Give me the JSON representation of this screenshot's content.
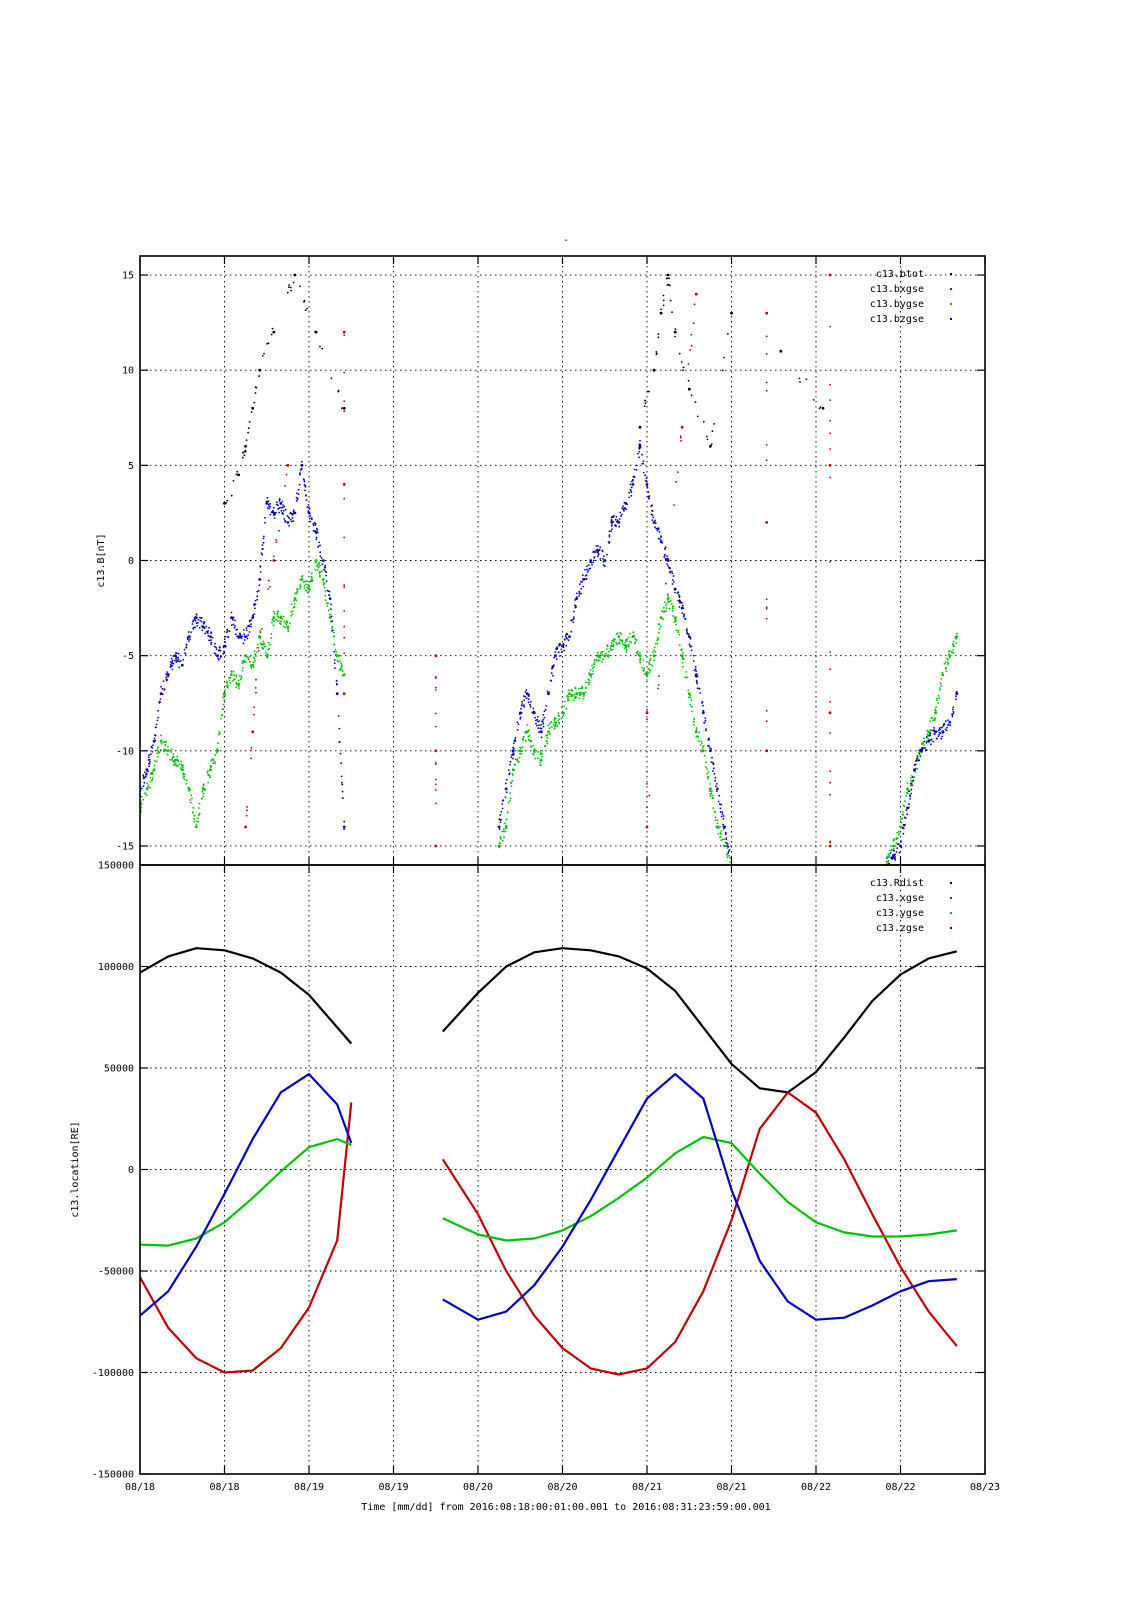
{
  "chart_data": [
    {
      "type": "scatter",
      "title": "-",
      "ylabel": "c13.B[nT]",
      "ylim": [
        -16,
        16
      ],
      "yticks": [
        -15,
        -10,
        -5,
        0,
        5,
        10,
        15
      ],
      "xlim": [
        "2016-08-18 00:00",
        "2016-08-23 00:00"
      ],
      "grid": true,
      "legend_position": "top-right",
      "series": [
        {
          "name": "c13.btot",
          "color": "#000000",
          "x": [
            "2016-08-18 12:00",
            "2016-08-18 14:00",
            "2016-08-18 15:00",
            "2016-08-18 16:00",
            "2016-08-18 17:00",
            "2016-08-18 19:00",
            "2016-08-18 22:00",
            "2016-08-19 01:00",
            "2016-08-19 05:00",
            "2016-08-20 23:00",
            "2016-08-21 01:00",
            "2016-08-21 02:00",
            "2016-08-21 03:00",
            "2016-08-21 04:00",
            "2016-08-21 06:00",
            "2016-08-21 09:00",
            "2016-08-21 12:00",
            "2016-08-21 19:00",
            "2016-08-22 01:00"
          ],
          "y": [
            3,
            4.5,
            6,
            8,
            10,
            12,
            15,
            12,
            8,
            7,
            10,
            13,
            15,
            12,
            9,
            6,
            13,
            11,
            8
          ]
        },
        {
          "name": "c13.bxgse",
          "color": "#c00000",
          "x": [
            "2016-08-18 15:00",
            "2016-08-18 16:00",
            "2016-08-18 17:00",
            "2016-08-18 19:00",
            "2016-08-18 21:00",
            "2016-08-19 05:00",
            "2016-08-19 05:00",
            "2016-08-19 05:00",
            "2016-08-19 18:00",
            "2016-08-19 18:00",
            "2016-08-19 18:00",
            "2016-08-21 00:00",
            "2016-08-21 00:00",
            "2016-08-21 03:00",
            "2016-08-21 05:00",
            "2016-08-21 07:00",
            "2016-08-21 17:00",
            "2016-08-21 17:00",
            "2016-08-21 17:00",
            "2016-08-22 02:00",
            "2016-08-22 02:00",
            "2016-08-22 02:00",
            "2016-08-22 02:00"
          ],
          "y": [
            -14,
            -9,
            -4,
            0,
            5,
            12,
            -7,
            4,
            -5,
            -10,
            -15,
            -8,
            -14,
            0,
            7,
            14,
            -10,
            2,
            13,
            15,
            5,
            -8,
            -15
          ]
        },
        {
          "name": "c13.bygse",
          "color": "#00c000",
          "x": [
            "2016-08-18 00:00",
            "2016-08-18 01:00",
            "2016-08-18 02:00",
            "2016-08-18 03:00",
            "2016-08-18 04:00",
            "2016-08-18 05:00",
            "2016-08-18 06:00",
            "2016-08-18 07:00",
            "2016-08-18 08:00",
            "2016-08-18 09:00",
            "2016-08-18 10:00",
            "2016-08-18 11:00",
            "2016-08-18 12:00",
            "2016-08-18 13:00",
            "2016-08-18 14:00",
            "2016-08-18 15:00",
            "2016-08-18 16:00",
            "2016-08-18 17:00",
            "2016-08-18 18:00",
            "2016-08-18 19:00",
            "2016-08-18 20:00",
            "2016-08-18 21:00",
            "2016-08-18 22:00",
            "2016-08-18 23:00",
            "2016-08-19 00:00",
            "2016-08-19 01:00",
            "2016-08-19 02:00",
            "2016-08-19 03:00",
            "2016-08-19 04:00",
            "2016-08-19 05:00",
            "2016-08-20 03:00",
            "2016-08-20 04:00",
            "2016-08-20 05:00",
            "2016-08-20 06:00",
            "2016-08-20 07:00",
            "2016-08-20 08:00",
            "2016-08-20 09:00",
            "2016-08-20 10:00",
            "2016-08-20 11:00",
            "2016-08-20 12:00",
            "2016-08-20 13:00",
            "2016-08-20 14:00",
            "2016-08-20 15:00",
            "2016-08-20 16:00",
            "2016-08-20 17:00",
            "2016-08-20 18:00",
            "2016-08-20 19:00",
            "2016-08-20 20:00",
            "2016-08-20 21:00",
            "2016-08-20 22:00",
            "2016-08-20 23:00",
            "2016-08-21 00:00",
            "2016-08-21 01:00",
            "2016-08-21 02:00",
            "2016-08-21 03:00",
            "2016-08-21 04:00",
            "2016-08-21 05:00",
            "2016-08-21 06:00",
            "2016-08-21 07:00",
            "2016-08-21 08:00",
            "2016-08-21 09:00",
            "2016-08-21 10:00",
            "2016-08-21 11:00",
            "2016-08-21 12:00",
            "2016-08-22 10:00",
            "2016-08-22 11:00",
            "2016-08-22 12:00",
            "2016-08-22 13:00",
            "2016-08-22 14:00",
            "2016-08-22 15:00",
            "2016-08-22 16:00",
            "2016-08-22 17:00",
            "2016-08-22 18:00",
            "2016-08-22 19:00",
            "2016-08-22 20:00"
          ],
          "y": [
            -13,
            -12,
            -11,
            -9.5,
            -10,
            -10.5,
            -11,
            -12,
            -14,
            -12,
            -11,
            -10,
            -7,
            -6,
            -6.5,
            -5,
            -5.5,
            -4,
            -5,
            -3,
            -3,
            -3.5,
            -2,
            -1,
            -1.5,
            0,
            -1,
            -3,
            -5,
            -6,
            -15,
            -14,
            -11,
            -10,
            -9,
            -10,
            -10.5,
            -9,
            -8.5,
            -8,
            -7,
            -7,
            -7,
            -6,
            -5,
            -5,
            -4.5,
            -4,
            -4.5,
            -4,
            -5,
            -6,
            -5,
            -3,
            -2,
            -3,
            -5,
            -7,
            -9,
            -10,
            -12,
            -14,
            -15,
            -16,
            -16,
            -15,
            -14,
            -12,
            -11,
            -10,
            -9,
            -8,
            -6,
            -5,
            -4
          ]
        },
        {
          "name": "c13.bzgse",
          "color": "#0000c0",
          "x": [
            "2016-08-18 00:00",
            "2016-08-18 01:00",
            "2016-08-18 02:00",
            "2016-08-18 03:00",
            "2016-08-18 04:00",
            "2016-08-18 05:00",
            "2016-08-18 06:00",
            "2016-08-18 07:00",
            "2016-08-18 08:00",
            "2016-08-18 09:00",
            "2016-08-18 10:00",
            "2016-08-18 11:00",
            "2016-08-18 12:00",
            "2016-08-18 13:00",
            "2016-08-18 14:00",
            "2016-08-18 15:00",
            "2016-08-18 16:00",
            "2016-08-18 17:00",
            "2016-08-18 18:00",
            "2016-08-18 19:00",
            "2016-08-18 20:00",
            "2016-08-18 21:00",
            "2016-08-18 22:00",
            "2016-08-18 23:00",
            "2016-08-19 00:00",
            "2016-08-19 01:00",
            "2016-08-19 02:00",
            "2016-08-19 03:00",
            "2016-08-19 04:00",
            "2016-08-19 05:00",
            "2016-08-20 03:00",
            "2016-08-20 04:00",
            "2016-08-20 05:00",
            "2016-08-20 06:00",
            "2016-08-20 07:00",
            "2016-08-20 08:00",
            "2016-08-20 09:00",
            "2016-08-20 10:00",
            "2016-08-20 11:00",
            "2016-08-20 12:00",
            "2016-08-20 13:00",
            "2016-08-20 14:00",
            "2016-08-20 15:00",
            "2016-08-20 16:00",
            "2016-08-20 17:00",
            "2016-08-20 18:00",
            "2016-08-20 19:00",
            "2016-08-20 20:00",
            "2016-08-20 21:00",
            "2016-08-20 22:00",
            "2016-08-20 23:00",
            "2016-08-21 00:00",
            "2016-08-21 01:00",
            "2016-08-21 02:00",
            "2016-08-21 03:00",
            "2016-08-21 04:00",
            "2016-08-21 05:00",
            "2016-08-21 06:00",
            "2016-08-21 07:00",
            "2016-08-21 08:00",
            "2016-08-21 09:00",
            "2016-08-21 10:00",
            "2016-08-21 11:00",
            "2016-08-21 12:00",
            "2016-08-22 10:00",
            "2016-08-22 11:00",
            "2016-08-22 12:00",
            "2016-08-22 13:00",
            "2016-08-22 14:00",
            "2016-08-22 15:00",
            "2016-08-22 16:00",
            "2016-08-22 17:00",
            "2016-08-22 18:00",
            "2016-08-22 19:00",
            "2016-08-22 20:00"
          ],
          "y": [
            -12,
            -11,
            -9.5,
            -7,
            -6,
            -5,
            -5.5,
            -4,
            -3,
            -3.5,
            -4,
            -5,
            -4.5,
            -3,
            -4,
            -4,
            -3,
            -1,
            3,
            2.5,
            3,
            2,
            2.5,
            5,
            2.5,
            1.5,
            0,
            -2,
            -7,
            -14,
            -14,
            -12,
            -10,
            -8,
            -7,
            -8,
            -9,
            -7,
            -5,
            -4.5,
            -4,
            -2,
            -1,
            0,
            0.5,
            0,
            2,
            2,
            3,
            4,
            6,
            4,
            2,
            1,
            0,
            -1.5,
            -2.5,
            -4,
            -6,
            -8,
            -10,
            -12,
            -14,
            -16,
            -16,
            -15.5,
            -15,
            -13,
            -11,
            -10,
            -9.5,
            -9,
            -9,
            -8.5,
            -7
          ]
        }
      ]
    },
    {
      "type": "line",
      "ylabel": "c13.location[RE]",
      "xlabel": "Time [mm/dd]  from 2016:08:18:00:01:00.001  to  2016:08:31:23:59:00.001",
      "ylim": [
        -150000,
        150000
      ],
      "yticks": [
        -150000,
        -100000,
        -50000,
        0,
        50000,
        100000,
        150000
      ],
      "xlim": [
        "2016-08-18 00:00",
        "2016-08-23 00:00"
      ],
      "xtick_labels": [
        "08/18",
        "08/18",
        "08/19",
        "08/19",
        "08/20",
        "08/20",
        "08/21",
        "08/21",
        "08/22",
        "08/22",
        "08/23"
      ],
      "grid": true,
      "legend_position": "top-right",
      "series": [
        {
          "name": "c13.Rdist",
          "color": "#000000",
          "x": [
            "2016-08-18 00:00",
            "2016-08-18 04:00",
            "2016-08-18 08:00",
            "2016-08-18 12:00",
            "2016-08-18 16:00",
            "2016-08-18 20:00",
            "2016-08-19 00:00",
            "2016-08-19 04:00",
            "2016-08-19 06:00",
            "2016-08-19 19:00",
            "2016-08-20 00:00",
            "2016-08-20 04:00",
            "2016-08-20 08:00",
            "2016-08-20 12:00",
            "2016-08-20 16:00",
            "2016-08-20 20:00",
            "2016-08-21 00:00",
            "2016-08-21 04:00",
            "2016-08-21 08:00",
            "2016-08-21 12:00",
            "2016-08-21 16:00",
            "2016-08-21 20:00",
            "2016-08-22 00:00",
            "2016-08-22 04:00",
            "2016-08-22 08:00",
            "2016-08-22 12:00",
            "2016-08-22 16:00",
            "2016-08-22 20:00"
          ],
          "y": [
            97000,
            105000,
            109000,
            108000,
            104000,
            97000,
            86000,
            70000,
            62000,
            68000,
            87000,
            100000,
            107000,
            109000,
            108000,
            105000,
            99000,
            88000,
            70000,
            52000,
            40000,
            38000,
            48000,
            65000,
            83000,
            96000,
            104000,
            107500
          ]
        },
        {
          "name": "c13.xgse",
          "color": "#c00000",
          "x": [
            "2016-08-18 00:00",
            "2016-08-18 04:00",
            "2016-08-18 08:00",
            "2016-08-18 12:00",
            "2016-08-18 16:00",
            "2016-08-18 20:00",
            "2016-08-19 00:00",
            "2016-08-19 04:00",
            "2016-08-19 06:00",
            "2016-08-19 19:00",
            "2016-08-20 00:00",
            "2016-08-20 04:00",
            "2016-08-20 08:00",
            "2016-08-20 12:00",
            "2016-08-20 16:00",
            "2016-08-20 20:00",
            "2016-08-21 00:00",
            "2016-08-21 04:00",
            "2016-08-21 08:00",
            "2016-08-21 12:00",
            "2016-08-21 16:00",
            "2016-08-21 20:00",
            "2016-08-22 00:00",
            "2016-08-22 04:00",
            "2016-08-22 08:00",
            "2016-08-22 12:00",
            "2016-08-22 16:00",
            "2016-08-22 20:00"
          ],
          "y": [
            -53000,
            -78000,
            -93000,
            -100000,
            -99000,
            -88000,
            -68000,
            -35000,
            33000,
            5000,
            -22000,
            -50000,
            -72000,
            -88000,
            -98000,
            -101000,
            -98000,
            -85000,
            -60000,
            -25000,
            20000,
            38000,
            28000,
            5000,
            -22000,
            -48000,
            -70000,
            -87000
          ]
        },
        {
          "name": "c13.ygse",
          "color": "#00c000",
          "x": [
            "2016-08-18 00:00",
            "2016-08-18 04:00",
            "2016-08-18 08:00",
            "2016-08-18 12:00",
            "2016-08-18 16:00",
            "2016-08-18 20:00",
            "2016-08-19 00:00",
            "2016-08-19 04:00",
            "2016-08-19 06:00",
            "2016-08-19 19:00",
            "2016-08-20 00:00",
            "2016-08-20 04:00",
            "2016-08-20 08:00",
            "2016-08-20 12:00",
            "2016-08-20 16:00",
            "2016-08-20 20:00",
            "2016-08-21 00:00",
            "2016-08-21 04:00",
            "2016-08-21 08:00",
            "2016-08-21 12:00",
            "2016-08-21 16:00",
            "2016-08-21 20:00",
            "2016-08-22 00:00",
            "2016-08-22 04:00",
            "2016-08-22 08:00",
            "2016-08-22 12:00",
            "2016-08-22 16:00",
            "2016-08-22 20:00"
          ],
          "y": [
            -37000,
            -37500,
            -34000,
            -26000,
            -14000,
            -1000,
            11000,
            15000,
            12000,
            -24000,
            -32000,
            -35000,
            -34000,
            -30000,
            -23000,
            -14000,
            -4000,
            8000,
            16000,
            13000,
            -2000,
            -16000,
            -26000,
            -31000,
            -33000,
            -33000,
            -32000,
            -30000
          ]
        },
        {
          "name": "c13.zgse",
          "color": "#0000c0",
          "x": [
            "2016-08-18 00:00",
            "2016-08-18 04:00",
            "2016-08-18 08:00",
            "2016-08-18 12:00",
            "2016-08-18 16:00",
            "2016-08-18 20:00",
            "2016-08-19 00:00",
            "2016-08-19 04:00",
            "2016-08-19 06:00",
            "2016-08-19 19:00",
            "2016-08-20 00:00",
            "2016-08-20 04:00",
            "2016-08-20 08:00",
            "2016-08-20 12:00",
            "2016-08-20 16:00",
            "2016-08-20 20:00",
            "2016-08-21 00:00",
            "2016-08-21 04:00",
            "2016-08-21 08:00",
            "2016-08-21 12:00",
            "2016-08-21 16:00",
            "2016-08-21 20:00",
            "2016-08-22 00:00",
            "2016-08-22 04:00",
            "2016-08-22 08:00",
            "2016-08-22 12:00",
            "2016-08-22 16:00",
            "2016-08-22 20:00"
          ],
          "y": [
            -72000,
            -60000,
            -38000,
            -12000,
            15000,
            38000,
            47000,
            32000,
            13000,
            -64000,
            -74000,
            -70000,
            -57000,
            -38000,
            -15000,
            10000,
            35000,
            47000,
            35000,
            -10000,
            -45000,
            -65000,
            -74000,
            -73000,
            -67000,
            -60000,
            -55000,
            -54000
          ]
        }
      ]
    }
  ]
}
